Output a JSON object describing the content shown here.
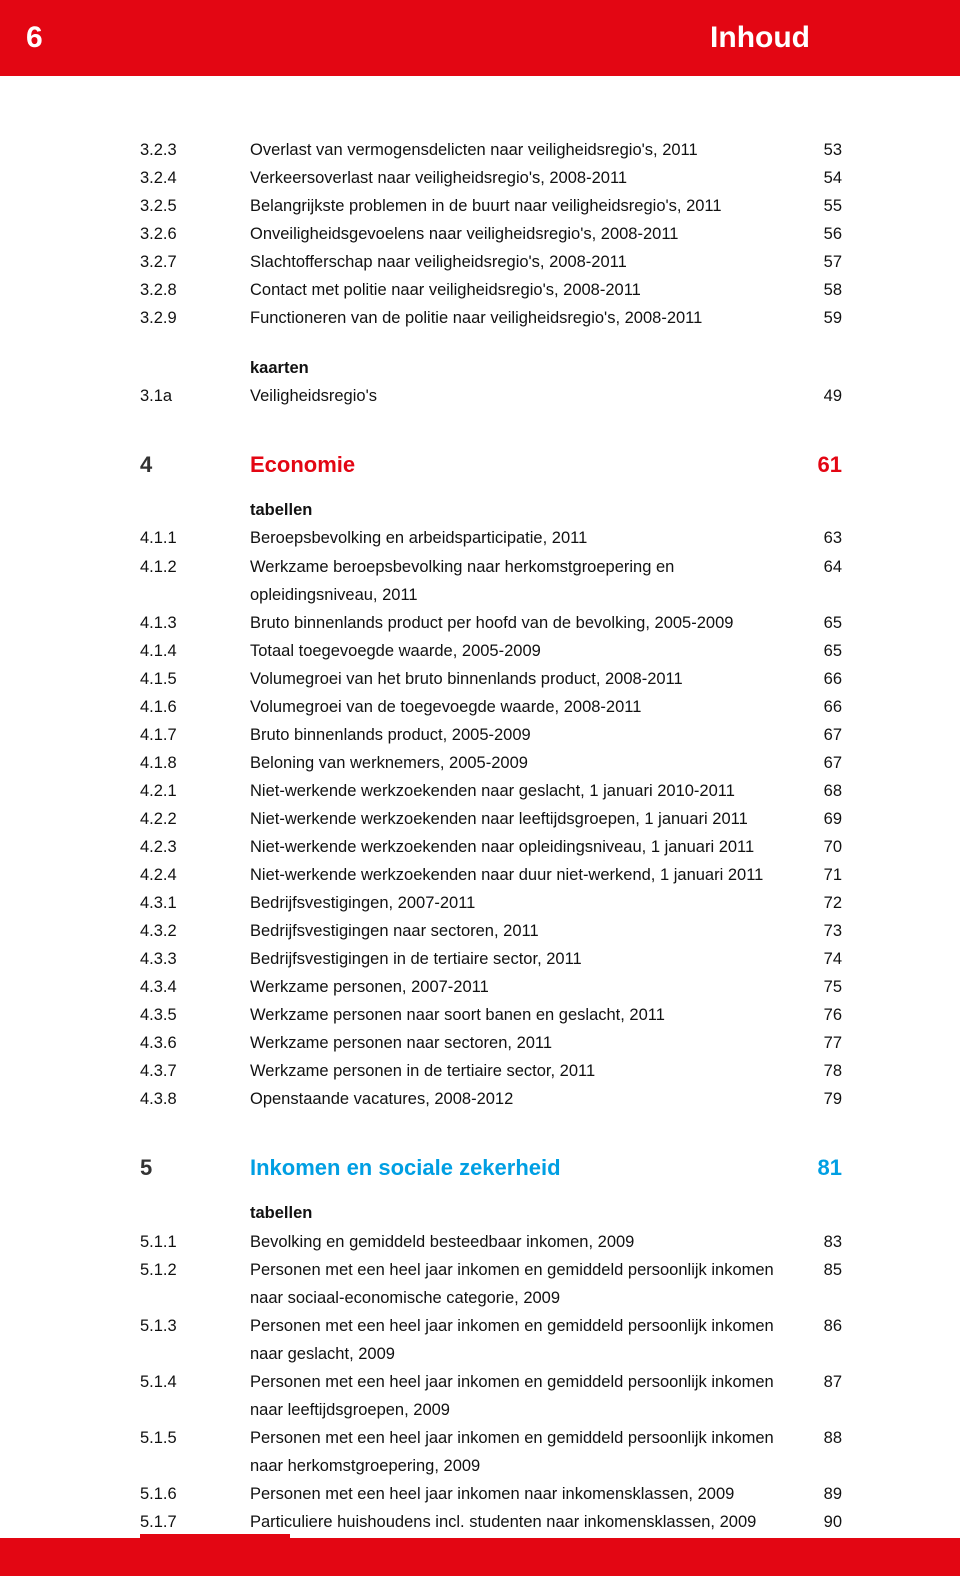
{
  "header": {
    "page_number": "6",
    "title": "Inhoud"
  },
  "colors": {
    "brand_red": "#e30613",
    "section4": "#e30613",
    "section5": "#009fe3",
    "text": "#111111",
    "background": "#ffffff"
  },
  "typography": {
    "body_fontsize_pt": 12,
    "heading_fontsize_pt": 16,
    "header_fontsize_pt": 22,
    "font_family": "Arial"
  },
  "block1": {
    "entries": [
      {
        "num": "3.2.3",
        "desc": "Overlast van vermogensdelicten naar veiligheidsregio's, 2011",
        "pg": "53"
      },
      {
        "num": "3.2.4",
        "desc": "Verkeersoverlast naar veiligheidsregio's, 2008-2011",
        "pg": "54"
      },
      {
        "num": "3.2.5",
        "desc": "Belangrijkste problemen in de buurt naar veiligheidsregio's, 2011",
        "pg": "55"
      },
      {
        "num": "3.2.6",
        "desc": "Onveiligheidsgevoelens naar veiligheidsregio's, 2008-2011",
        "pg": "56"
      },
      {
        "num": "3.2.7",
        "desc": "Slachtofferschap naar veiligheidsregio's, 2008-2011",
        "pg": "57"
      },
      {
        "num": "3.2.8",
        "desc": "Contact met politie naar veiligheidsregio's, 2008-2011",
        "pg": "58"
      },
      {
        "num": "3.2.9",
        "desc": "Functioneren van de politie naar veiligheidsregio's, 2008-2011",
        "pg": "59"
      }
    ],
    "sub_label": "kaarten",
    "sub_entries": [
      {
        "num": "3.1a",
        "desc": "Veiligheidsregio's",
        "pg": "49"
      }
    ]
  },
  "section4": {
    "num": "4",
    "title": "Economie",
    "pg": "61",
    "sub_label": "tabellen",
    "entries": [
      {
        "num": "4.1.1",
        "desc": "Beroepsbevolking en arbeidsparticipatie, 2011",
        "pg": "63"
      },
      {
        "num": "4.1.2",
        "desc": "Werkzame beroepsbevolking naar herkomstgroepering en opleidingsniveau, 2011",
        "pg": "64"
      },
      {
        "num": "4.1.3",
        "desc": "Bruto binnenlands product per hoofd van de bevolking, 2005-2009",
        "pg": "65"
      },
      {
        "num": "4.1.4",
        "desc": "Totaal toegevoegde waarde, 2005-2009",
        "pg": "65"
      },
      {
        "num": "4.1.5",
        "desc": "Volumegroei van het bruto binnenlands product, 2008-2011",
        "pg": "66"
      },
      {
        "num": "4.1.6",
        "desc": "Volumegroei van de toegevoegde waarde, 2008-2011",
        "pg": "66"
      },
      {
        "num": "4.1.7",
        "desc": "Bruto binnenlands product, 2005-2009",
        "pg": "67"
      },
      {
        "num": "4.1.8",
        "desc": "Beloning van werknemers, 2005-2009",
        "pg": "67"
      },
      {
        "num": "4.2.1",
        "desc": "Niet-werkende werkzoekenden naar geslacht, 1 januari 2010-2011",
        "pg": "68"
      },
      {
        "num": "4.2.2",
        "desc": "Niet-werkende werkzoekenden naar leeftijdsgroepen, 1 januari 2011",
        "pg": "69"
      },
      {
        "num": "4.2.3",
        "desc": "Niet-werkende werkzoekenden naar opleidingsniveau, 1 januari 2011",
        "pg": "70"
      },
      {
        "num": "4.2.4",
        "desc": "Niet-werkende werkzoekenden naar duur niet-werkend, 1 januari 2011",
        "pg": "71"
      },
      {
        "num": "4.3.1",
        "desc": "Bedrijfsvestigingen, 2007-2011",
        "pg": "72"
      },
      {
        "num": "4.3.2",
        "desc": "Bedrijfsvestigingen naar sectoren, 2011",
        "pg": "73"
      },
      {
        "num": "4.3.3",
        "desc": "Bedrijfsvestigingen in de tertiaire sector, 2011",
        "pg": "74"
      },
      {
        "num": "4.3.4",
        "desc": "Werkzame personen, 2007-2011",
        "pg": "75"
      },
      {
        "num": "4.3.5",
        "desc": "Werkzame personen naar soort banen en geslacht, 2011",
        "pg": "76"
      },
      {
        "num": "4.3.6",
        "desc": "Werkzame personen naar sectoren, 2011",
        "pg": "77"
      },
      {
        "num": "4.3.7",
        "desc": "Werkzame personen in de tertiaire sector, 2011",
        "pg": "78"
      },
      {
        "num": "4.3.8",
        "desc": "Openstaande vacatures, 2008-2012",
        "pg": "79"
      }
    ]
  },
  "section5": {
    "num": "5",
    "title": "Inkomen en sociale zekerheid",
    "pg": "81",
    "sub_label": "tabellen",
    "entries": [
      {
        "num": "5.1.1",
        "desc": "Bevolking en gemiddeld besteedbaar inkomen, 2009",
        "pg": "83"
      },
      {
        "num": "5.1.2",
        "desc": "Personen met een heel jaar inkomen en gemiddeld persoonlijk inkomen naar sociaal-economische categorie, 2009",
        "pg": "85"
      },
      {
        "num": "5.1.3",
        "desc": "Personen met een heel jaar inkomen en gemiddeld persoonlijk inkomen naar geslacht, 2009",
        "pg": "86"
      },
      {
        "num": "5.1.4",
        "desc": "Personen met een heel jaar inkomen en gemiddeld persoonlijk inkomen naar leeftijdsgroepen, 2009",
        "pg": "87"
      },
      {
        "num": "5.1.5",
        "desc": "Personen met een heel jaar inkomen en gemiddeld persoonlijk inkomen naar herkomstgroepering, 2009",
        "pg": "88"
      },
      {
        "num": "5.1.6",
        "desc": "Personen met een heel jaar inkomen naar inkomensklassen, 2009",
        "pg": "89"
      },
      {
        "num": "5.1.7",
        "desc": "Particuliere huishoudens incl. studenten naar inkomensklassen, 2009",
        "pg": "90"
      }
    ]
  }
}
